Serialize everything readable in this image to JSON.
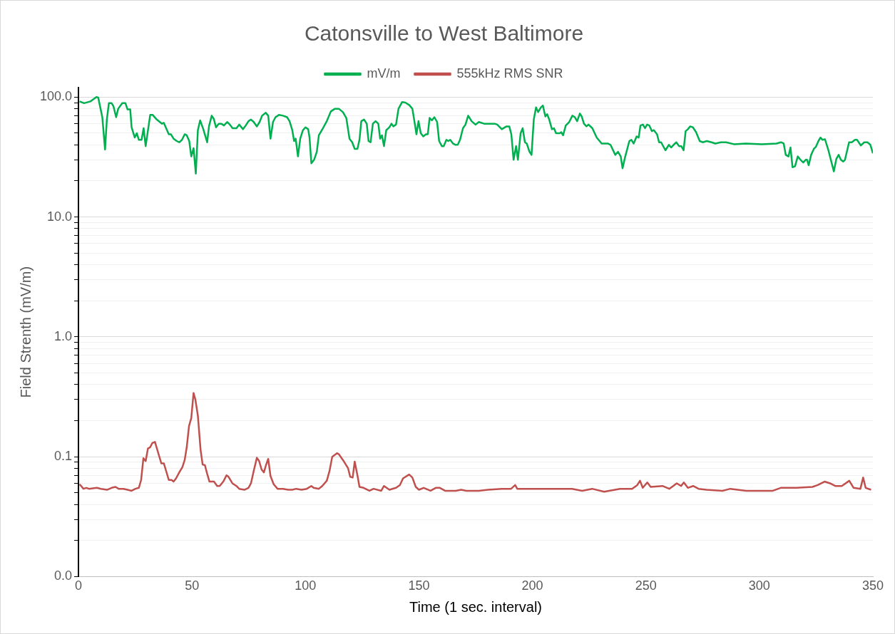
{
  "chart_data": {
    "type": "line",
    "title": "Catonsville to West Baltimore",
    "xlabel": "Time (1 sec. interval)",
    "ylabel": "Field Strenth (mV/m)",
    "legend": "top",
    "grid": "y",
    "log": "y",
    "marker": "none",
    "line_style": "solid",
    "xlim": [
      0,
      350
    ],
    "xticks": [
      0,
      50,
      100,
      150,
      200,
      250,
      300,
      350
    ],
    "ylim": [
      0.01,
      120
    ],
    "yticks": [
      {
        "value": 0.01,
        "label": "0.0"
      },
      {
        "value": 0.02,
        "label": null
      },
      {
        "value": 0.03,
        "label": null
      },
      {
        "value": 0.04,
        "label": null
      },
      {
        "value": 0.05,
        "label": null
      },
      {
        "value": 0.06,
        "label": null
      },
      {
        "value": 0.07,
        "label": null
      },
      {
        "value": 0.08,
        "label": null
      },
      {
        "value": 0.09,
        "label": null
      },
      0.1,
      {
        "value": 0.2,
        "label": null
      },
      {
        "value": 0.3,
        "label": null
      },
      {
        "value": 0.4,
        "label": null
      },
      {
        "value": 0.5,
        "label": null
      },
      {
        "value": 0.6,
        "label": null
      },
      {
        "value": 0.7,
        "label": null
      },
      {
        "value": 0.8,
        "label": null
      },
      {
        "value": 0.9,
        "label": null
      },
      {
        "value": 1,
        "label": "1.0"
      },
      {
        "value": 2,
        "label": null
      },
      {
        "value": 3,
        "label": null
      },
      {
        "value": 4,
        "label": null
      },
      {
        "value": 5,
        "label": null
      },
      {
        "value": 6,
        "label": null
      },
      {
        "value": 7,
        "label": null
      },
      {
        "value": 8,
        "label": null
      },
      {
        "value": 9,
        "label": null
      },
      {
        "value": 10,
        "label": "10.0"
      },
      {
        "value": 20,
        "label": null
      },
      {
        "value": 30,
        "label": null
      },
      {
        "value": 40,
        "label": null
      },
      {
        "value": 50,
        "label": null
      },
      {
        "value": 60,
        "label": null
      },
      {
        "value": 70,
        "label": null
      },
      {
        "value": 80,
        "label": null
      },
      {
        "value": 90,
        "label": null
      },
      {
        "value": 100,
        "label": "100.0"
      }
    ],
    "series": [
      {
        "name": "mV/m",
        "color": "#00b050",
        "x": [
          0.5,
          2.5,
          5.2,
          7.9,
          8.7,
          10.5,
          11.7,
          12.5,
          13.4,
          14.6,
          15.4,
          16.6,
          17.5,
          19.3,
          20.7,
          21.6,
          22.8,
          23.4,
          24.8,
          25.7,
          26.6,
          27.8,
          28.7,
          29.6,
          31.6,
          32.7,
          34.5,
          36.8,
          37.6,
          39.8,
          40.7,
          41.9,
          43.3,
          44.4,
          45.6,
          46.8,
          47.7,
          48.8,
          49.7,
          50.7,
          51.7,
          52.6,
          53.6,
          55,
          56.7,
          57.5,
          58.7,
          59.6,
          60.6,
          61.8,
          62.9,
          64.1,
          65.5,
          66.7,
          67.9,
          69.6,
          70.8,
          72.5,
          73.7,
          74.9,
          76,
          77.2,
          78.6,
          79.8,
          80.9,
          82.5,
          83.6,
          84.6,
          85.7,
          86.8,
          88.3,
          90.1,
          91.9,
          93,
          94.2,
          95,
          95.7,
          96.7,
          97.7,
          98.9,
          100,
          101.2,
          101.8,
          102.6,
          103.8,
          105,
          105.9,
          107.7,
          109.4,
          111.2,
          113,
          114.7,
          116.5,
          118,
          119.4,
          120.6,
          121.7,
          122.9,
          123.8,
          124.6,
          125.8,
          127,
          127.8,
          128.7,
          129.7,
          130.9,
          132.1,
          132.9,
          133.7,
          134.6,
          135.6,
          137,
          137.9,
          138.7,
          139.9,
          141,
          142.6,
          144,
          145.7,
          147.1,
          148,
          148.9,
          149.8,
          150.8,
          151.9,
          153.1,
          153.9,
          154.7,
          155.7,
          156.8,
          158,
          158.9,
          160.1,
          160.9,
          162.1,
          162.9,
          163.8,
          165,
          166.1,
          167.1,
          168.1,
          169.4,
          170.5,
          171.7,
          173.2,
          174.9,
          176.4,
          178.7,
          183.4,
          184.5,
          186.5,
          188.6,
          189.8,
          190.7,
          191.7,
          192.8,
          193.6,
          194.8,
          195.7,
          196.7,
          197.5,
          198.7,
          199.6,
          200.6,
          201.6,
          202.5,
          203.7,
          204.6,
          205.7,
          206.5,
          207.4,
          208.6,
          209.5,
          210.4,
          212.1,
          212.7,
          213.5,
          214.7,
          216.2,
          217.6,
          218.7,
          219.7,
          220.9,
          221.7,
          222.7,
          223.8,
          224.7,
          226.4,
          228.3,
          230.5,
          233.2,
          234.4,
          236.5,
          237.7,
          238.9,
          239.7,
          240.9,
          242.7,
          243.6,
          244.6,
          245.9,
          246.8,
          247.6,
          248.7,
          249.6,
          250.5,
          251.5,
          252.6,
          253.5,
          254.9,
          255.8,
          256.7,
          258.6,
          260.1,
          261.1,
          262.2,
          263.4,
          264.6,
          265.6,
          266.6,
          267.5,
          268.5,
          269.5,
          270.7,
          272.1,
          273.7,
          275.1,
          276.8,
          278.9,
          280.6,
          283,
          285.3,
          288.8,
          294.1,
          301.1,
          307.5,
          309.5,
          310.7,
          311.6,
          312.8,
          313.7,
          314.6,
          315.7,
          316.9,
          318.1,
          319.3,
          320.4,
          321,
          321.7,
          322.8,
          324,
          324.9,
          326,
          326.9,
          327.8,
          328.9,
          330.4,
          332.8,
          333.9,
          334.9,
          335.9,
          336.9,
          337.7,
          339.5,
          340.7,
          342.1,
          343,
          344.7,
          346.2,
          347.6,
          348.9,
          350
        ],
        "values": [
          92,
          89,
          92,
          100,
          99,
          68,
          36.5,
          65,
          89,
          89,
          84,
          68,
          80,
          89,
          89,
          79,
          79,
          56,
          46,
          50,
          44,
          44,
          55,
          39,
          71,
          71,
          65,
          60,
          61,
          49,
          49,
          45,
          43,
          42,
          44,
          49,
          48,
          43,
          32,
          37.5,
          23,
          53,
          64,
          54,
          42,
          57,
          70,
          66,
          56,
          60,
          60,
          58,
          62,
          59,
          55,
          55,
          59,
          54,
          58,
          63,
          65,
          62,
          57,
          62,
          70,
          74,
          70,
          45,
          62,
          68,
          71,
          70,
          68,
          63,
          53,
          43,
          45,
          32,
          45,
          53,
          56,
          54,
          46,
          28,
          30,
          35,
          48,
          55,
          63,
          76,
          80,
          80,
          75,
          67,
          45,
          42,
          37,
          37,
          44,
          63,
          65,
          60,
          43,
          42,
          60,
          63,
          60,
          45,
          48,
          39,
          53,
          56,
          60,
          57,
          59,
          80,
          91,
          90,
          86,
          80,
          63,
          49,
          63,
          50,
          47,
          49,
          49,
          67,
          64,
          68,
          62,
          43,
          39,
          39,
          44,
          43,
          44,
          41,
          40,
          40,
          44,
          55,
          59,
          70,
          63,
          59,
          62,
          60,
          60,
          59,
          54,
          57,
          57,
          49,
          30,
          39,
          30,
          50,
          55,
          42,
          41,
          35,
          33,
          65,
          82,
          75,
          82,
          85,
          69,
          72,
          65,
          54,
          55,
          50,
          50,
          51,
          48,
          58,
          62,
          70,
          68,
          63,
          73,
          69,
          60,
          57,
          59,
          55,
          46,
          41,
          41,
          40,
          33,
          35,
          32,
          25.5,
          32,
          43,
          44,
          41,
          47,
          46,
          58,
          59,
          55,
          59,
          58,
          52,
          53,
          49,
          42,
          42,
          36,
          40,
          38,
          40,
          42,
          39,
          39,
          36,
          52,
          54,
          57,
          56,
          51,
          43,
          42,
          43,
          42,
          41,
          42,
          42,
          40.5,
          41,
          40.5,
          41,
          42,
          41,
          33,
          32,
          38,
          26,
          26.5,
          32,
          30,
          28.5,
          30,
          30,
          27,
          33,
          37,
          38.5,
          43,
          46,
          44,
          44.5,
          36,
          24,
          30.5,
          33,
          30,
          29,
          30,
          42,
          42,
          44,
          44,
          39.5,
          42,
          42,
          40,
          34
        ]
      },
      {
        "name": "555kHz RMS SNR",
        "color": "#c0504d",
        "x": [
          0.5,
          2.2,
          3.5,
          4.6,
          8.1,
          9.9,
          12.6,
          14.6,
          16.3,
          17.7,
          19.8,
          21.6,
          23.4,
          25.1,
          26.6,
          27.6,
          28.6,
          29.6,
          30.6,
          31.6,
          32.5,
          33.7,
          35.1,
          36.5,
          37.6,
          39.8,
          41,
          41.9,
          43,
          44.4,
          45.8,
          46.8,
          47.7,
          48.7,
          49.7,
          50.7,
          51.5,
          52.6,
          53.8,
          54.7,
          55.7,
          56.7,
          57.7,
          59.7,
          61.1,
          62.2,
          63.8,
          65.2,
          66.1,
          67.8,
          69.6,
          70.8,
          73.1,
          74.9,
          76,
          77.2,
          78.6,
          79.6,
          80.7,
          81.7,
          82.6,
          83.6,
          84.6,
          86,
          87.7,
          90.1,
          92.4,
          94.2,
          95.9,
          98.3,
          100.6,
          102.6,
          103.6,
          105.9,
          107.4,
          109.4,
          110.6,
          111.8,
          113.9,
          114.7,
          116.5,
          118.8,
          119.7,
          120.8,
          121.7,
          122.9,
          123.8,
          125.6,
          128.2,
          130,
          133.4,
          134.6,
          137,
          139.9,
          141.6,
          143,
          145.7,
          147.1,
          148.6,
          150,
          152.1,
          155.1,
          157.4,
          159.2,
          161.5,
          166.2,
          168.6,
          170.9,
          174.4,
          176.4,
          180.4,
          186.5,
          190.6,
          192.4,
          193.3,
          200.6,
          206.5,
          211.2,
          217.5,
          221.9,
          226.3,
          231.6,
          238.6,
          243.9,
          246.2,
          247.4,
          248.6,
          250.6,
          252.1,
          257.3,
          260.3,
          263.6,
          265.5,
          266.7,
          268.5,
          270.8,
          273.2,
          276.7,
          283.7,
          287.2,
          294.2,
          300,
          305.9,
          309.4,
          316.4,
          323.4,
          325.7,
          328.7,
          331.1,
          333.4,
          336.3,
          339.6,
          341.5,
          344.5,
          345.7,
          346.8,
          349.2
        ],
        "values": [
          0.059,
          0.054,
          0.055,
          0.054,
          0.055,
          0.054,
          0.053,
          0.055,
          0.056,
          0.054,
          0.054,
          0.053,
          0.052,
          0.054,
          0.055,
          0.064,
          0.097,
          0.092,
          0.117,
          0.12,
          0.13,
          0.133,
          0.108,
          0.088,
          0.088,
          0.064,
          0.064,
          0.062,
          0.066,
          0.074,
          0.082,
          0.094,
          0.12,
          0.18,
          0.21,
          0.34,
          0.3,
          0.22,
          0.114,
          0.086,
          0.085,
          0.072,
          0.062,
          0.062,
          0.057,
          0.057,
          0.062,
          0.07,
          0.068,
          0.06,
          0.057,
          0.054,
          0.053,
          0.055,
          0.06,
          0.076,
          0.098,
          0.092,
          0.078,
          0.074,
          0.085,
          0.096,
          0.069,
          0.059,
          0.054,
          0.054,
          0.053,
          0.053,
          0.054,
          0.053,
          0.054,
          0.057,
          0.055,
          0.054,
          0.057,
          0.063,
          0.076,
          0.1,
          0.107,
          0.105,
          0.094,
          0.08,
          0.068,
          0.067,
          0.091,
          0.07,
          0.056,
          0.055,
          0.052,
          0.054,
          0.052,
          0.057,
          0.053,
          0.055,
          0.058,
          0.066,
          0.071,
          0.067,
          0.056,
          0.053,
          0.055,
          0.052,
          0.055,
          0.055,
          0.052,
          0.052,
          0.053,
          0.052,
          0.052,
          0.052,
          0.053,
          0.054,
          0.054,
          0.058,
          0.054,
          0.054,
          0.054,
          0.054,
          0.054,
          0.052,
          0.054,
          0.051,
          0.054,
          0.054,
          0.058,
          0.063,
          0.055,
          0.061,
          0.056,
          0.057,
          0.054,
          0.06,
          0.057,
          0.061,
          0.055,
          0.057,
          0.054,
          0.053,
          0.052,
          0.054,
          0.052,
          0.052,
          0.052,
          0.055,
          0.055,
          0.056,
          0.058,
          0.062,
          0.06,
          0.057,
          0.057,
          0.063,
          0.055,
          0.054,
          0.067,
          0.055,
          0.053
        ]
      }
    ]
  }
}
